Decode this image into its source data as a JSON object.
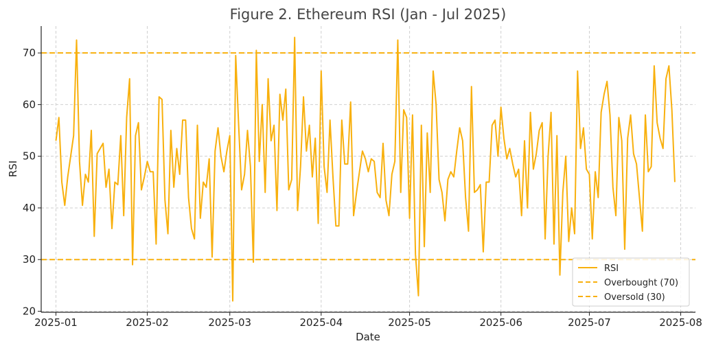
{
  "chart_data": {
    "type": "line",
    "title": "Figure 2. Ethereum RSI (Jan - Jul 2025)",
    "xlabel": "Date",
    "ylabel": "RSI",
    "xlim": [
      "2024-12-27",
      "2025-08-06"
    ],
    "ylim": [
      19.8,
      75.2
    ],
    "grid": true,
    "legend_position": "bottom-right",
    "x_ticks": [
      {
        "date": "2025-01-01",
        "label": "2025-01"
      },
      {
        "date": "2025-02-01",
        "label": "2025-02"
      },
      {
        "date": "2025-03-01",
        "label": "2025-03"
      },
      {
        "date": "2025-04-01",
        "label": "2025-04"
      },
      {
        "date": "2025-05-01",
        "label": "2025-05"
      },
      {
        "date": "2025-06-01",
        "label": "2025-06"
      },
      {
        "date": "2025-07-01",
        "label": "2025-07"
      },
      {
        "date": "2025-08-01",
        "label": "2025-08"
      }
    ],
    "y_ticks": [
      20,
      30,
      40,
      50,
      60,
      70
    ],
    "colors": {
      "rsi": "#f8b00d",
      "overbought": "#f8b00d",
      "oversold": "#f8b00d"
    },
    "thresholds": [
      {
        "name": "Overbought (70)",
        "value": 70
      },
      {
        "name": "Oversold (30)",
        "value": 30
      }
    ],
    "series": [
      {
        "name": "RSI",
        "start_date": "2025-01-01",
        "values": [
          53,
          57.5,
          45,
          40.5,
          46,
          50,
          54,
          72.5,
          49,
          40.5,
          46.5,
          45,
          55,
          34.5,
          50.5,
          51.5,
          52.5,
          44,
          47.5,
          36,
          45,
          44.5,
          54,
          38.5,
          57.5,
          65,
          29,
          54,
          56.5,
          43.5,
          46,
          49,
          47,
          47,
          33,
          61.5,
          61,
          41.5,
          35,
          55,
          44,
          51.5,
          46.5,
          57,
          57,
          42,
          36,
          34,
          56,
          38,
          45,
          44,
          49.5,
          30.5,
          51,
          55.5,
          50,
          47,
          51,
          54,
          22,
          69.5,
          56,
          43.5,
          46.5,
          55,
          48,
          29.5,
          70.5,
          49,
          60,
          43,
          65,
          53,
          56,
          39.5,
          62,
          57,
          63,
          43.5,
          45.5,
          73,
          39.5,
          48,
          61.5,
          51,
          56,
          46,
          53.5,
          37,
          66.5,
          48,
          43,
          57,
          46,
          36.5,
          36.5,
          57,
          48.5,
          48.5,
          60.5,
          38.5,
          43,
          47,
          51,
          49.5,
          47,
          49.5,
          49,
          43,
          42,
          52.5,
          41.5,
          38.5,
          46.5,
          49,
          72.5,
          43,
          59,
          57.5,
          38,
          58,
          31,
          23,
          56,
          32.5,
          54.5,
          43,
          66.5,
          60,
          45.5,
          43,
          37.5,
          45.5,
          47,
          46,
          51,
          55.5,
          53,
          42,
          35.5,
          63.5,
          43,
          43.5,
          44.5,
          31.5,
          45,
          45,
          56,
          57,
          50,
          59.5,
          53.5,
          49.5,
          51.5,
          48.5,
          46,
          47.5,
          38.5,
          53,
          40,
          58.5,
          47.5,
          50.5,
          55,
          56.5,
          34,
          50,
          58.5,
          33,
          54,
          27,
          43,
          50,
          33.5,
          40,
          35,
          66.5,
          51.5,
          55.5,
          47.5,
          46.5,
          34,
          47,
          42,
          58.5,
          62,
          64.5,
          58,
          44,
          38.5,
          57.5,
          53,
          32,
          53.5,
          58,
          50.5,
          48.5,
          42,
          35.5,
          58,
          47,
          48,
          67.5,
          56.5,
          53.5,
          51.5,
          65,
          67.5,
          59,
          45
        ]
      }
    ]
  }
}
